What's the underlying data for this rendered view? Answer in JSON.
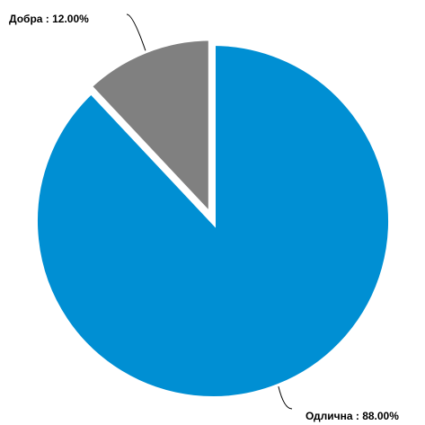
{
  "chart_data": {
    "type": "pie",
    "slices": [
      {
        "label": "Одлична",
        "value": 88.0,
        "display": "Одлична : 88.00%",
        "color": "#008fd3"
      },
      {
        "label": "Добра",
        "value": 12.0,
        "display": "Добра : 12.00%",
        "color": "#808080"
      }
    ]
  }
}
